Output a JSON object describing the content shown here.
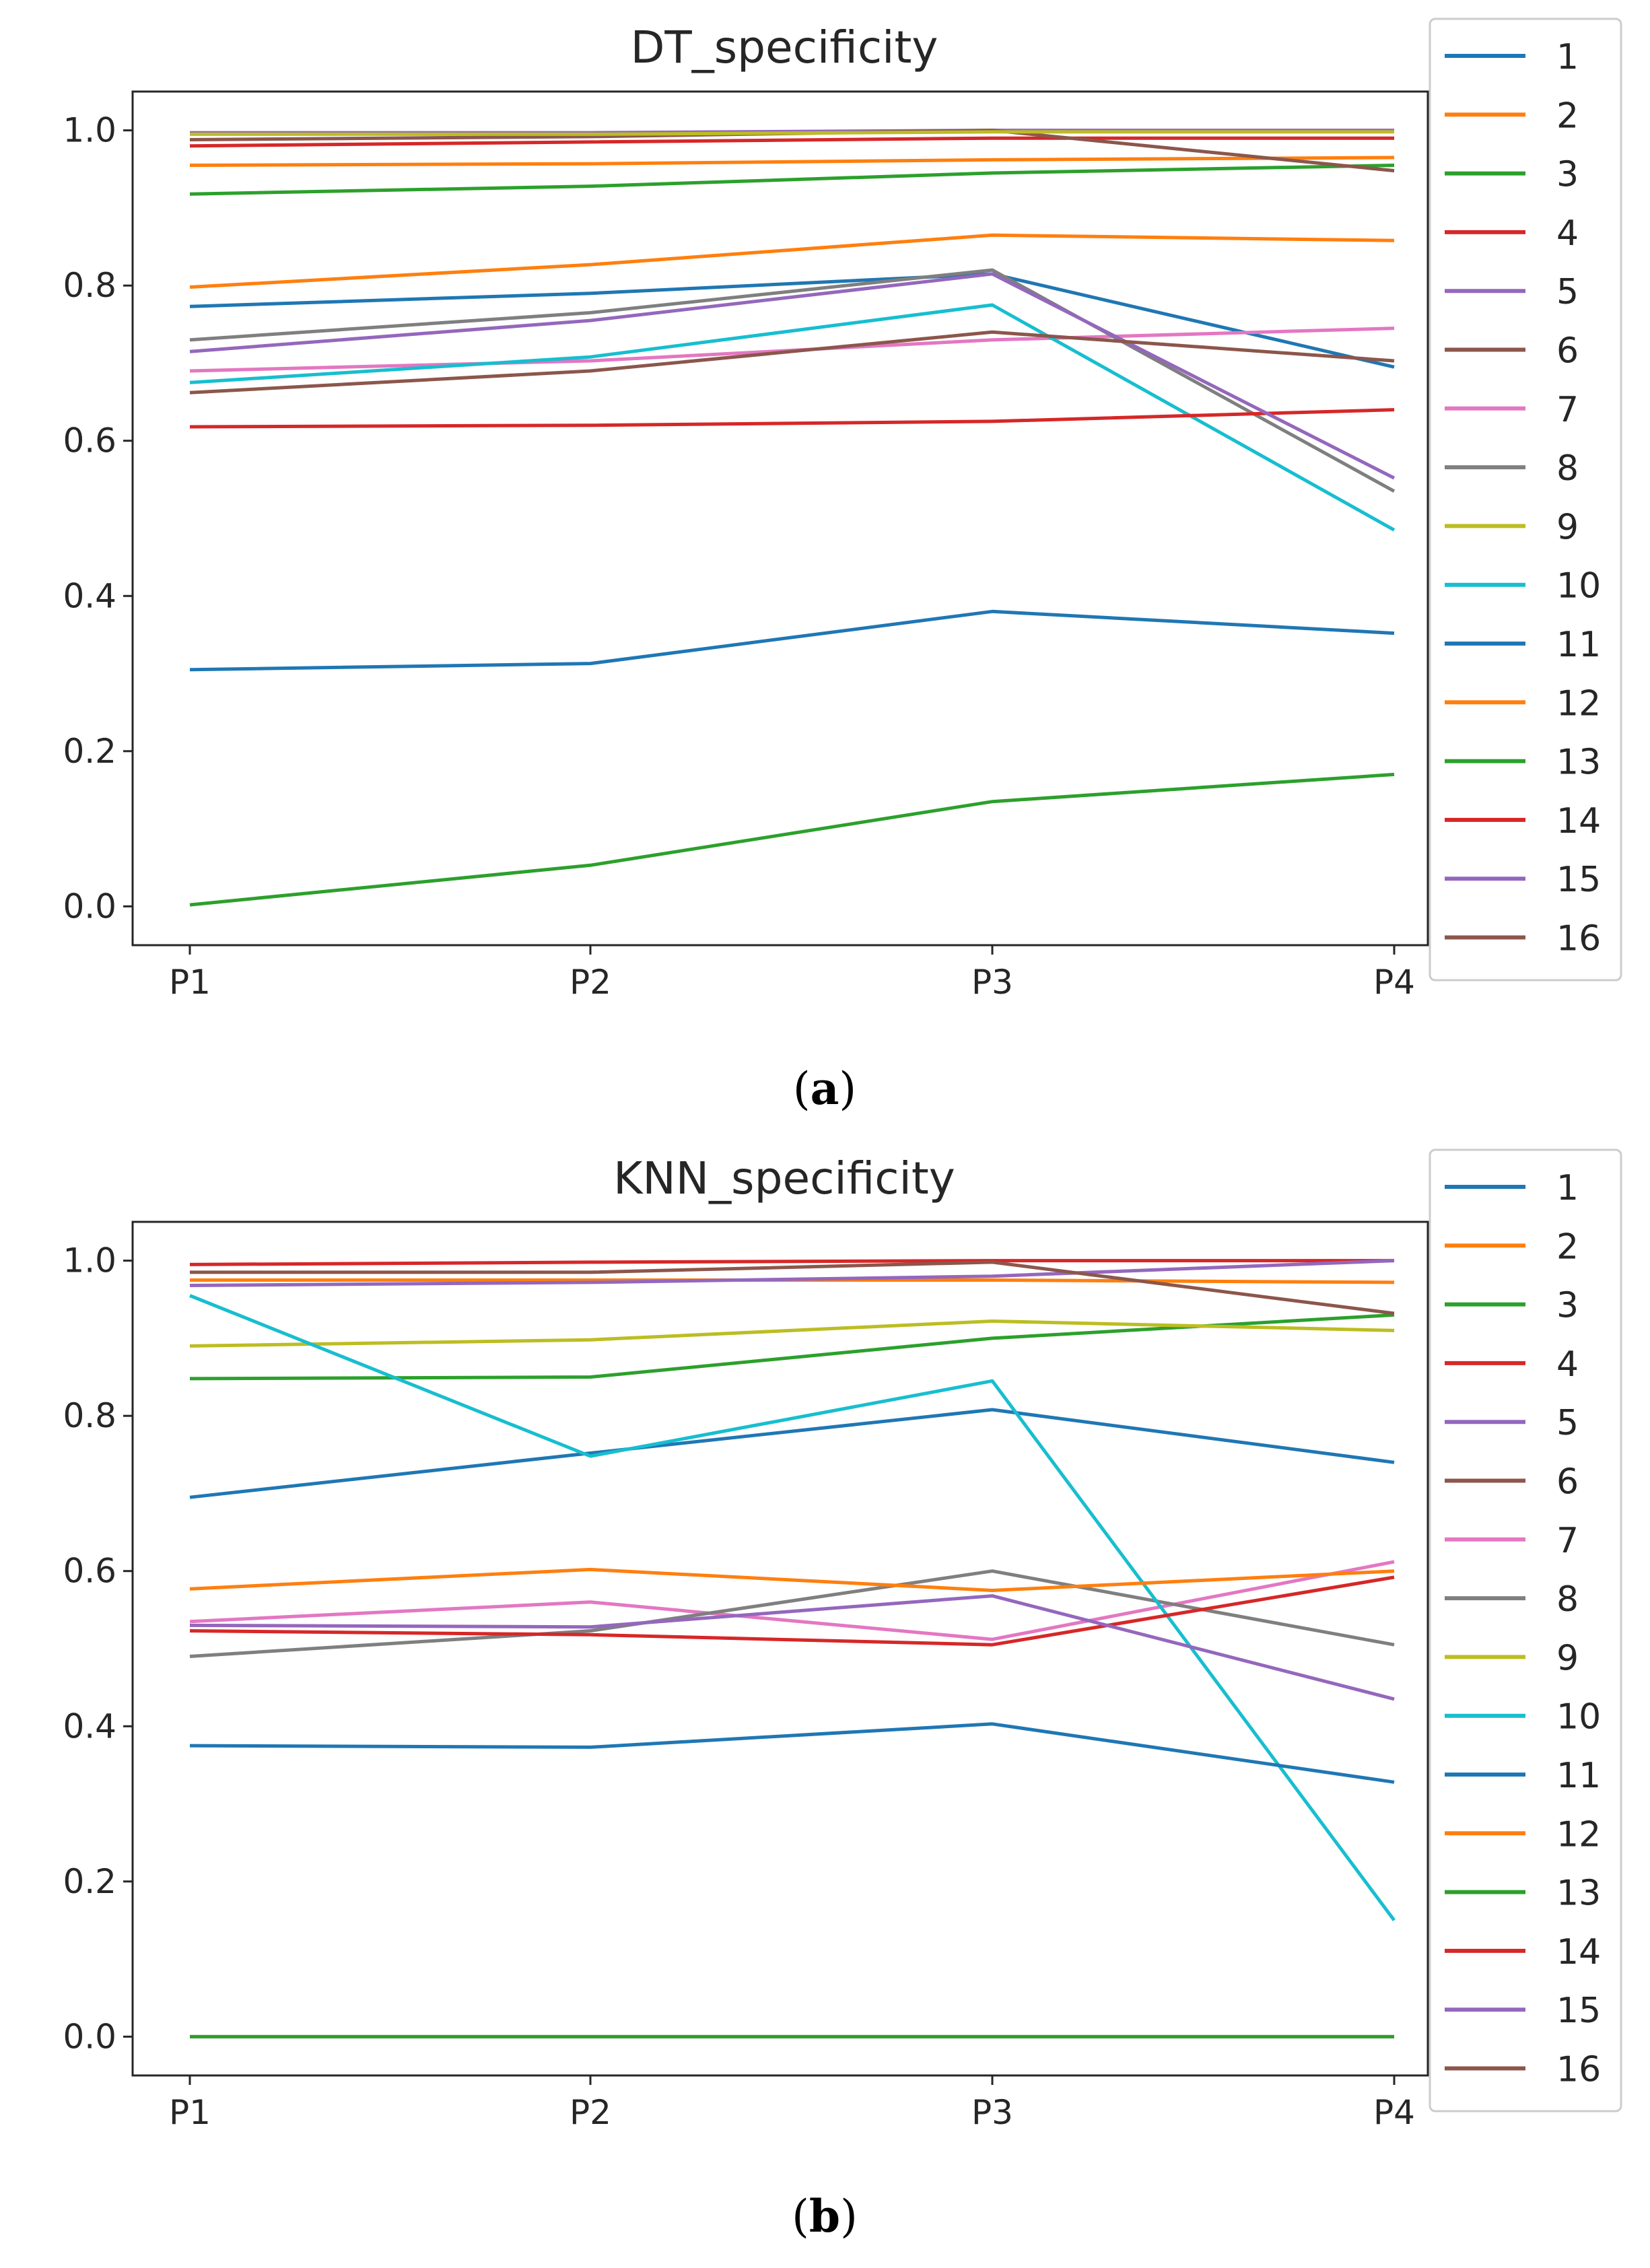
{
  "captions": [
    "(",
    "a",
    ")",
    "(",
    "b",
    ")"
  ],
  "chart_data": [
    {
      "type": "line",
      "title": "DT_specificity",
      "categories": [
        "P1",
        "P2",
        "P3",
        "P4"
      ],
      "ylim": [
        -0.05,
        1.05
      ],
      "yticks": [
        "0.0",
        "0.2",
        "0.4",
        "0.6",
        "0.8",
        "1.0"
      ],
      "legend_position": "right, outside plot",
      "series": [
        {
          "name": "1",
          "color": "#1f77b4",
          "values": [
            0.773,
            0.79,
            0.815,
            0.695
          ]
        },
        {
          "name": "2",
          "color": "#ff7f0e",
          "values": [
            0.955,
            0.957,
            0.962,
            0.965
          ]
        },
        {
          "name": "3",
          "color": "#2ca02c",
          "values": [
            0.918,
            0.928,
            0.945,
            0.955
          ]
        },
        {
          "name": "4",
          "color": "#d62728",
          "values": [
            0.98,
            0.985,
            0.99,
            0.99
          ]
        },
        {
          "name": "5",
          "color": "#9467bd",
          "values": [
            0.997,
            0.997,
            1.0,
            1.0
          ]
        },
        {
          "name": "6",
          "color": "#8c564b",
          "values": [
            0.988,
            0.992,
            1.0,
            0.948
          ]
        },
        {
          "name": "7",
          "color": "#e377c2",
          "values": [
            0.69,
            0.703,
            0.73,
            0.745
          ]
        },
        {
          "name": "8",
          "color": "#7f7f7f",
          "values": [
            0.73,
            0.765,
            0.82,
            0.535
          ]
        },
        {
          "name": "9",
          "color": "#bcbd22",
          "values": [
            0.995,
            0.995,
            0.998,
            0.998
          ]
        },
        {
          "name": "10",
          "color": "#17becf",
          "values": [
            0.675,
            0.708,
            0.775,
            0.485
          ]
        },
        {
          "name": "11",
          "color": "#1f77b4",
          "values": [
            0.305,
            0.313,
            0.38,
            0.352
          ]
        },
        {
          "name": "12",
          "color": "#ff7f0e",
          "values": [
            0.798,
            0.827,
            0.865,
            0.858
          ]
        },
        {
          "name": "13",
          "color": "#2ca02c",
          "values": [
            0.002,
            0.053,
            0.135,
            0.17
          ]
        },
        {
          "name": "14",
          "color": "#d62728",
          "values": [
            0.618,
            0.62,
            0.625,
            0.64
          ]
        },
        {
          "name": "15",
          "color": "#9467bd",
          "values": [
            0.715,
            0.755,
            0.815,
            0.552
          ]
        },
        {
          "name": "16",
          "color": "#8c564b",
          "values": [
            0.662,
            0.69,
            0.74,
            0.703
          ]
        }
      ]
    },
    {
      "type": "line",
      "title": "KNN_specificity",
      "categories": [
        "P1",
        "P2",
        "P3",
        "P4"
      ],
      "ylim": [
        -0.05,
        1.05
      ],
      "yticks": [
        "0.0",
        "0.2",
        "0.4",
        "0.6",
        "0.8",
        "1.0"
      ],
      "legend_position": "right, outside plot",
      "series": [
        {
          "name": "1",
          "color": "#1f77b4",
          "values": [
            0.695,
            0.752,
            0.808,
            0.74
          ]
        },
        {
          "name": "2",
          "color": "#ff7f0e",
          "values": [
            0.975,
            0.975,
            0.975,
            0.972
          ]
        },
        {
          "name": "3",
          "color": "#2ca02c",
          "values": [
            0.848,
            0.85,
            0.9,
            0.93
          ]
        },
        {
          "name": "4",
          "color": "#d62728",
          "values": [
            0.995,
            0.998,
            1.0,
            1.0
          ]
        },
        {
          "name": "5",
          "color": "#9467bd",
          "values": [
            0.968,
            0.972,
            0.98,
            1.0
          ]
        },
        {
          "name": "6",
          "color": "#8c564b",
          "values": [
            0.0,
            0.0,
            0.0,
            0.0
          ]
        },
        {
          "name": "7",
          "color": "#e377c2",
          "values": [
            0.535,
            0.56,
            0.512,
            0.612
          ]
        },
        {
          "name": "8",
          "color": "#7f7f7f",
          "values": [
            0.49,
            0.523,
            0.6,
            0.505
          ]
        },
        {
          "name": "9",
          "color": "#bcbd22",
          "values": [
            0.89,
            0.898,
            0.922,
            0.91
          ]
        },
        {
          "name": "10",
          "color": "#17becf",
          "values": [
            0.955,
            0.748,
            0.845,
            0.15
          ]
        },
        {
          "name": "11",
          "color": "#1f77b4",
          "values": [
            0.375,
            0.373,
            0.403,
            0.328
          ]
        },
        {
          "name": "12",
          "color": "#ff7f0e",
          "values": [
            0.577,
            0.602,
            0.575,
            0.6
          ]
        },
        {
          "name": "13",
          "color": "#2ca02c",
          "values": [
            0.0,
            0.0,
            0.0,
            0.0
          ]
        },
        {
          "name": "14",
          "color": "#d62728",
          "values": [
            0.523,
            0.518,
            0.505,
            0.592
          ]
        },
        {
          "name": "15",
          "color": "#9467bd",
          "values": [
            0.53,
            0.528,
            0.568,
            0.435
          ]
        },
        {
          "name": "16",
          "color": "#8c564b",
          "values": [
            0.985,
            0.985,
            0.998,
            0.932
          ]
        }
      ]
    }
  ]
}
